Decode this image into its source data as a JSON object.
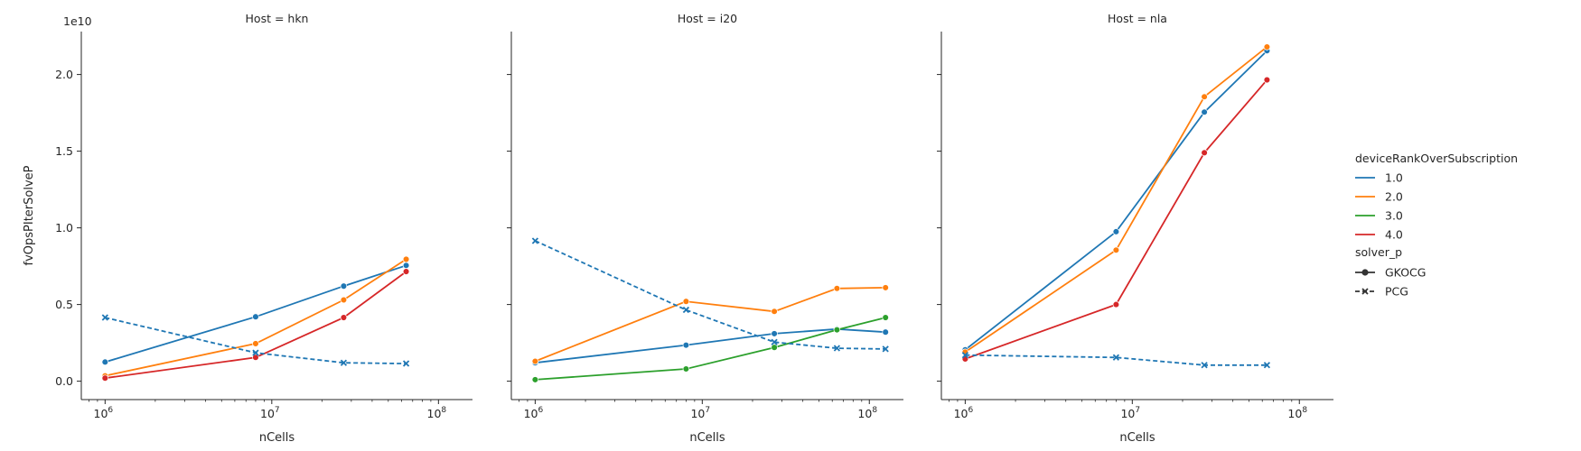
{
  "chart_data": {
    "type": "line",
    "y_scale_label": "1e10",
    "ylabel": "fvOpsPIterSolveP",
    "ylim": [
      -0.12,
      2.28
    ],
    "y_ticks": [
      "0.0",
      "0.5",
      "1.0",
      "1.5",
      "2.0"
    ],
    "xlim": [
      720000.0,
      160000000.0
    ],
    "x_scale": "log",
    "x_ticks": [
      {
        "base": "10",
        "exp": "6"
      },
      {
        "base": "10",
        "exp": "7"
      },
      {
        "base": "10",
        "exp": "8"
      }
    ],
    "legend": {
      "placement": "right",
      "hue_title": "deviceRankOverSubscription",
      "hue": [
        {
          "label": "1.0",
          "color": "#1f77b4"
        },
        {
          "label": "2.0",
          "color": "#ff7f0e"
        },
        {
          "label": "3.0",
          "color": "#2ca02c"
        },
        {
          "label": "4.0",
          "color": "#d62728"
        }
      ],
      "style_title": "solver_p",
      "styles": [
        {
          "label": "GKOCG",
          "marker": "circle",
          "dash": "solid"
        },
        {
          "label": "PCG",
          "marker": "x",
          "dash": "dashed"
        }
      ]
    },
    "panels": [
      {
        "title": "Host = hkn",
        "xlabel": "nCells",
        "series": [
          {
            "rank": "1.0",
            "solver": "GKOCG",
            "x": [
              1000000.0,
              8000000.0,
              27000000.0,
              64000000.0
            ],
            "y": [
              0.125,
              0.42,
              0.62,
              0.755
            ]
          },
          {
            "rank": "2.0",
            "solver": "GKOCG",
            "x": [
              1000000.0,
              8000000.0,
              27000000.0,
              64000000.0
            ],
            "y": [
              0.035,
              0.245,
              0.53,
              0.795
            ]
          },
          {
            "rank": "4.0",
            "solver": "GKOCG",
            "x": [
              1000000.0,
              8000000.0,
              27000000.0,
              64000000.0
            ],
            "y": [
              0.02,
              0.155,
              0.415,
              0.715
            ]
          },
          {
            "rank": "1.0",
            "solver": "PCG",
            "x": [
              1000000.0,
              8000000.0,
              27000000.0,
              64000000.0
            ],
            "y": [
              0.415,
              0.185,
              0.12,
              0.115
            ]
          }
        ]
      },
      {
        "title": "Host = i20",
        "xlabel": "nCells",
        "series": [
          {
            "rank": "1.0",
            "solver": "GKOCG",
            "x": [
              1000000.0,
              8000000.0,
              27000000.0,
              64000000.0,
              125000000.0
            ],
            "y": [
              0.12,
              0.235,
              0.31,
              0.34,
              0.32
            ]
          },
          {
            "rank": "2.0",
            "solver": "GKOCG",
            "x": [
              1000000.0,
              8000000.0,
              27000000.0,
              64000000.0,
              125000000.0
            ],
            "y": [
              0.13,
              0.52,
              0.455,
              0.605,
              0.61
            ]
          },
          {
            "rank": "3.0",
            "solver": "GKOCG",
            "x": [
              1000000.0,
              8000000.0,
              27000000.0,
              64000000.0,
              125000000.0
            ],
            "y": [
              0.01,
              0.08,
              0.22,
              0.335,
              0.415
            ]
          },
          {
            "rank": "1.0",
            "solver": "PCG",
            "x": [
              1000000.0,
              8000000.0,
              27000000.0,
              64000000.0,
              125000000.0
            ],
            "y": [
              0.915,
              0.465,
              0.255,
              0.215,
              0.21
            ]
          }
        ]
      },
      {
        "title": "Host = nla",
        "xlabel": "nCells",
        "series": [
          {
            "rank": "1.0",
            "solver": "GKOCG",
            "x": [
              1000000.0,
              8000000.0,
              27000000.0,
              64000000.0
            ],
            "y": [
              0.205,
              0.975,
              1.755,
              2.155
            ]
          },
          {
            "rank": "2.0",
            "solver": "GKOCG",
            "x": [
              1000000.0,
              8000000.0,
              27000000.0,
              64000000.0
            ],
            "y": [
              0.19,
              0.855,
              1.855,
              2.18
            ]
          },
          {
            "rank": "4.0",
            "solver": "GKOCG",
            "x": [
              1000000.0,
              8000000.0,
              27000000.0,
              64000000.0
            ],
            "y": [
              0.145,
              0.5,
              1.49,
              1.965
            ]
          },
          {
            "rank": "1.0",
            "solver": "PCG",
            "x": [
              1000000.0,
              8000000.0,
              27000000.0,
              64000000.0
            ],
            "y": [
              0.17,
              0.155,
              0.105,
              0.105
            ]
          }
        ]
      }
    ]
  }
}
